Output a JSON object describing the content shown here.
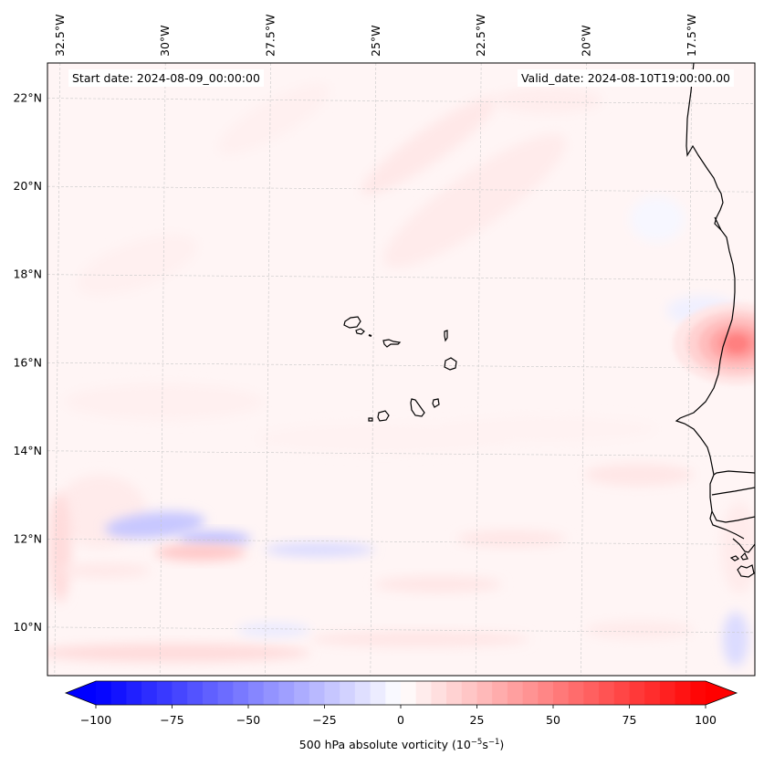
{
  "map": {
    "type": "contourf",
    "projection": "regional lat/lon (Cape Verde / West Africa)",
    "start_date_label": "Start date: 2024-08-09_00:00:00",
    "valid_date_label": "Valid_date: 2024-08-10T19:00:00.00",
    "longitude_labels": [
      "32.5°W",
      "30°W",
      "27.5°W",
      "25°W",
      "22.5°W",
      "20°W",
      "17.5°W"
    ],
    "longitude_values": [
      -32.5,
      -30,
      -27.5,
      -25,
      -22.5,
      -20,
      -17.5
    ],
    "latitude_labels": [
      "22°N",
      "20°N",
      "18°N",
      "16°N",
      "14°N",
      "12°N",
      "10°N"
    ],
    "latitude_values": [
      22,
      20,
      18,
      16,
      14,
      12,
      10
    ],
    "extent": {
      "lon_min": -32.8,
      "lon_max": -16.0,
      "lat_min": 8.9,
      "lat_max": 22.8
    },
    "gridlines": true,
    "features": [
      "coastline",
      "Cape Verde islands",
      "West African coast (Mauritania, Senegal, Gambia, Guinea-Bissau)"
    ],
    "highlights": [
      {
        "name": "vorticity maximum near Mauritania coast",
        "lon": -16.3,
        "lat": 16.6,
        "value": 55
      },
      {
        "name": "negative band",
        "lon": -30.5,
        "lat": 12.3,
        "value": -20
      },
      {
        "name": "negative band",
        "lon": -27.2,
        "lat": 12.0,
        "value": -25
      },
      {
        "name": "positive band",
        "lon": -27.8,
        "lat": 11.6,
        "value": 20
      },
      {
        "name": "positive band",
        "lon": -32.4,
        "lat": 12.5,
        "value": 15
      },
      {
        "name": "positive band",
        "lon": -29.5,
        "lat": 9.3,
        "value": 12
      }
    ]
  },
  "colorbar": {
    "label_main": "500 hPa absolute vorticity (10",
    "label_exp1": "−5",
    "label_mid": "s",
    "label_exp2": "−1",
    "label_end": ")",
    "ticks": [
      "−100",
      "−75",
      "−50",
      "−25",
      "0",
      "25",
      "50",
      "75",
      "100"
    ],
    "tick_values": [
      -100,
      -75,
      -50,
      -25,
      0,
      25,
      50,
      75,
      100
    ],
    "range": [
      -100,
      100
    ],
    "levels_step": 5,
    "extend": "both",
    "cmap": "bwr",
    "color_min": "#0000ff",
    "color_mid": "#ffffff",
    "color_max": "#ff0000"
  }
}
